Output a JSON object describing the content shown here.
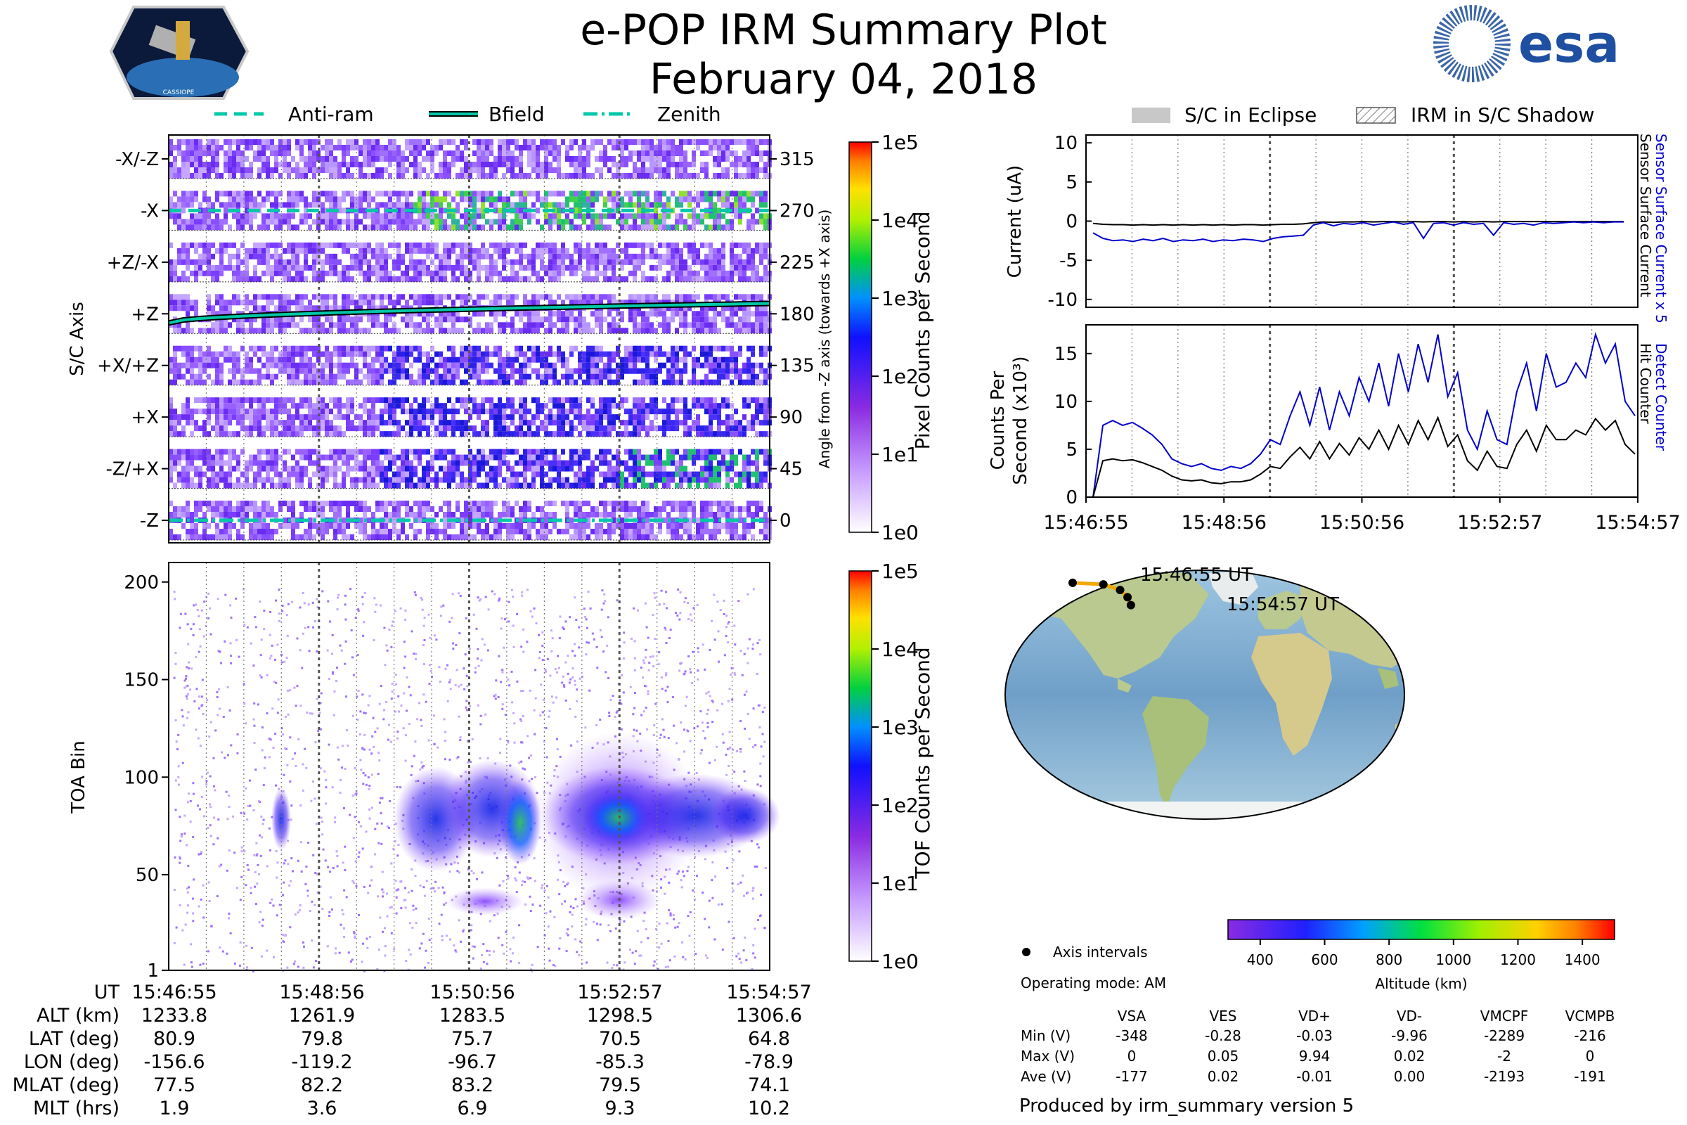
{
  "title": "e-POP IRM Summary Plot",
  "date": "February 04, 2018",
  "logos": {
    "left": "CASSIOPE",
    "right": "esa"
  },
  "legend_top_left": [
    {
      "label": "Anti-ram",
      "style": "dashed",
      "color": "#00e5c0"
    },
    {
      "label": "Bfield",
      "style": "solid",
      "color": "#00e5c0"
    },
    {
      "label": "Zenith",
      "style": "dashdot",
      "color": "#00e5c0"
    }
  ],
  "legend_top_right": [
    {
      "label": "S/C in Eclipse",
      "style": "gray"
    },
    {
      "label": "IRM in S/C Shadow",
      "style": "hatch"
    }
  ],
  "chart_data": [
    {
      "type": "heatmap",
      "name": "pixel-axis",
      "ylabel": "S/C Axis",
      "right_ylabel": "Angle from -Z axis (towards +X axis)",
      "axis_labels": [
        "-X/-Z",
        "-X",
        "+Z/-X",
        "+Z",
        "+X/+Z",
        "+X",
        "-Z/+X",
        "-Z"
      ],
      "angle_ticks": [
        "315",
        "270",
        "225",
        "180",
        "135",
        "90",
        "45",
        "0"
      ],
      "colorbar": {
        "label": "Pixel Counts per Second",
        "ticks": [
          "1e5",
          "1e4",
          "1e3",
          "1e2",
          "1e1",
          "1e0"
        ]
      },
      "lines": [
        {
          "name": "Anti-ram",
          "angle": [
            270,
            270
          ]
        },
        {
          "name": "Bfield",
          "angle": [
            172,
            189
          ]
        },
        {
          "name": "Zenith",
          "angle": [
            0,
            0
          ]
        }
      ]
    },
    {
      "type": "heatmap",
      "name": "toa",
      "ylabel": "TOA Bin",
      "yticks": [
        "200",
        "150",
        "100",
        "50",
        "1"
      ],
      "ylim": [
        1,
        210
      ],
      "colorbar": {
        "label": "TOF Counts per Second",
        "ticks": [
          "1e5",
          "1e4",
          "1e3",
          "1e2",
          "1e1",
          "1e0"
        ]
      }
    },
    {
      "type": "line",
      "name": "current",
      "ylabel": "Current (uA)",
      "yticks": [
        "10",
        "5",
        "0",
        "-5",
        "-10"
      ],
      "ylim": [
        -11,
        11
      ],
      "right_labels": [
        {
          "text": "Sensor Surface Current x 5",
          "color": "#0000cc"
        },
        {
          "text": "Sensor Surface Current",
          "color": "#000000"
        }
      ],
      "series": [
        {
          "name": "Sensor Surface Current x 5",
          "color": "#0000cc",
          "values": [
            -1.5,
            -2.2,
            -2.5,
            -2.4,
            -2.6,
            -2.3,
            -2.5,
            -2.2,
            -2.6,
            -2.4,
            -2.5,
            -2.3,
            -2.6,
            -2.4,
            -2.5,
            -2.3,
            -2.4,
            -2.6,
            -2.2,
            -2.0,
            -1.9,
            -1.8,
            -0.5,
            -0.2,
            -0.6,
            -0.3,
            -0.4,
            -0.2,
            -0.5,
            -0.3,
            -0.1,
            -0.4,
            -0.2,
            -2.2,
            -0.3,
            -0.2,
            -0.5,
            -0.2,
            -0.4,
            -0.3,
            -1.8,
            -0.2,
            -0.4,
            -0.3,
            -0.5,
            -0.2,
            -0.3,
            -0.2,
            -0.1,
            -0.2,
            -0.1,
            -0.2,
            -0.1,
            -0.1
          ]
        },
        {
          "name": "Sensor Surface Current",
          "color": "#000000",
          "values": [
            -0.3,
            -0.4,
            -0.45,
            -0.45,
            -0.5,
            -0.45,
            -0.5,
            -0.45,
            -0.5,
            -0.45,
            -0.5,
            -0.45,
            -0.5,
            -0.45,
            -0.5,
            -0.45,
            -0.45,
            -0.5,
            -0.45,
            -0.4,
            -0.4,
            -0.35,
            -0.2,
            -0.1,
            -0.15,
            -0.1,
            -0.1,
            -0.05,
            -0.1,
            -0.05,
            -0.05,
            -0.1,
            -0.05,
            -0.1,
            -0.05,
            -0.05,
            -0.1,
            -0.05,
            -0.1,
            -0.05,
            -0.1,
            -0.05,
            -0.05,
            -0.05,
            -0.05,
            -0.05,
            -0.05,
            -0.05,
            -0.05,
            -0.05,
            -0.05,
            -0.05,
            -0.05,
            -0.05
          ]
        }
      ]
    },
    {
      "type": "line",
      "name": "counts",
      "ylabel": "Counts Per Second (x10³)",
      "yticks": [
        "15",
        "10",
        "5",
        "0"
      ],
      "ylim": [
        0,
        18
      ],
      "xticks": [
        "15:46:55",
        "15:48:56",
        "15:50:56",
        "15:52:57",
        "15:54:57"
      ],
      "right_labels": [
        {
          "text": "Detect Counter",
          "color": "#0000cc"
        },
        {
          "text": "Hit Counter",
          "color": "#000000"
        }
      ],
      "series": [
        {
          "name": "Detect Counter",
          "color": "#0000cc",
          "values": [
            0,
            7.5,
            8,
            7.5,
            7.8,
            7.2,
            6.5,
            5.5,
            4,
            3.5,
            3.2,
            3.5,
            3,
            2.8,
            3.2,
            3,
            3.5,
            4.5,
            6,
            5.5,
            8.5,
            11,
            7.5,
            11.5,
            7,
            11,
            8.5,
            12.5,
            10,
            14,
            9.5,
            15,
            11,
            16,
            12,
            17,
            10.5,
            13,
            7,
            5,
            9,
            6,
            5.5,
            11,
            14,
            9,
            15,
            11.5,
            12,
            14,
            12.5,
            17,
            14,
            16,
            10,
            8.5
          ]
        },
        {
          "name": "Hit Counter",
          "color": "#000000",
          "values": [
            0,
            3.8,
            4,
            3.8,
            3.9,
            3.6,
            3.2,
            2.8,
            2.2,
            1.8,
            1.7,
            1.8,
            1.5,
            1.4,
            1.6,
            1.6,
            1.8,
            2.4,
            3.2,
            3,
            4.2,
            5.2,
            4,
            5.8,
            4,
            5.6,
            4.4,
            6.2,
            5,
            7,
            5,
            7.5,
            5.5,
            8,
            6,
            8.3,
            5.3,
            6.5,
            3.8,
            2.8,
            4.8,
            3.2,
            3,
            5.5,
            7,
            4.8,
            7.5,
            6,
            6,
            7,
            6.5,
            8.2,
            7,
            8,
            5.5,
            4.5
          ]
        }
      ]
    },
    {
      "type": "scatter",
      "name": "ground-track",
      "x": [
        -156.6,
        -119.2,
        -96.7,
        -85.3,
        -78.9
      ],
      "y": [
        80.9,
        79.8,
        75.7,
        70.5,
        64.8
      ],
      "xlabel": "Longitude (deg)",
      "ylabel": "Latitude (deg)",
      "labels": [
        "15:46:55 UT",
        "15:54:57 UT"
      ],
      "colorbar": {
        "label": "Altitude (km)",
        "ticks": [
          "400",
          "600",
          "800",
          "1000",
          "1200",
          "1400"
        ],
        "range": [
          300,
          1500
        ]
      },
      "legend": "Axis intervals"
    }
  ],
  "info_table": {
    "row_labels": [
      "UT",
      "ALT (km)",
      "LAT (deg)",
      "LON (deg)",
      "MLAT (deg)",
      "MLT (hrs)"
    ],
    "columns": [
      [
        "15:46:55",
        "1233.8",
        "80.9",
        "-156.6",
        "77.5",
        "1.9"
      ],
      [
        "15:48:56",
        "1261.9",
        "79.8",
        "-119.2",
        "82.2",
        "3.6"
      ],
      [
        "15:50:56",
        "1283.5",
        "75.7",
        "-96.7",
        "83.2",
        "6.9"
      ],
      [
        "15:52:57",
        "1298.5",
        "70.5",
        "-85.3",
        "79.5",
        "9.3"
      ],
      [
        "15:54:57",
        "1306.6",
        "64.8",
        "-78.9",
        "74.1",
        "10.2"
      ]
    ]
  },
  "operating_mode": "Operating mode: AM",
  "voltage_table": {
    "headers": [
      "VSA",
      "VES",
      "VD+",
      "VD-",
      "VMCPF",
      "VCMPB"
    ],
    "rows": [
      {
        "label": "Min (V)",
        "values": [
          "-348",
          "-0.28",
          "-0.03",
          "-9.96",
          "-2289",
          "-216"
        ]
      },
      {
        "label": "Max (V)",
        "values": [
          "0",
          "0.05",
          "9.94",
          "0.02",
          "-2",
          "0"
        ]
      },
      {
        "label": "Ave (V)",
        "values": [
          "-177",
          "0.02",
          "-0.01",
          "0.00",
          "-2193",
          "-191"
        ]
      }
    ]
  },
  "footer": "Produced by irm_summary version 5"
}
